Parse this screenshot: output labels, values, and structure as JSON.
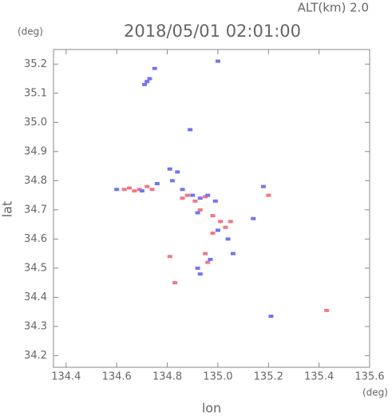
{
  "chart_data": {
    "type": "scatter",
    "title": "2018/05/01 02:01:00",
    "subtitle": "ALT(km)  2.0",
    "y_unit": "(deg)",
    "x_unit": "(deg)",
    "y_label": "lat",
    "x_label": "lon",
    "xlim": [
      134.35,
      135.6
    ],
    "ylim": [
      34.16,
      35.25
    ],
    "xticks": [
      134.4,
      134.6,
      134.8,
      {
        "value": 135.0,
        "label": "135.0"
      },
      135.2,
      135.4,
      135.6
    ],
    "yticks": [
      34.2,
      34.3,
      34.4,
      34.5,
      34.6,
      34.7,
      34.8,
      34.9,
      {
        "value": 35.0,
        "label": "35.0"
      },
      35.1,
      35.2
    ],
    "series": [
      {
        "color": "#f07888",
        "x": [
          134.63,
          134.65,
          134.67,
          134.69,
          134.72,
          134.74,
          134.88,
          134.91,
          134.95,
          134.98,
          135.01,
          135.03,
          135.05,
          134.98,
          134.95,
          134.96,
          134.81,
          134.83,
          135.43,
          135.2,
          134.86,
          134.93
        ],
        "values": [
          34.77,
          34.775,
          34.765,
          34.77,
          34.78,
          34.77,
          34.75,
          34.73,
          34.745,
          34.68,
          34.66,
          34.64,
          34.66,
          34.62,
          34.55,
          34.52,
          34.54,
          34.45,
          34.355,
          34.75,
          34.74,
          34.7
        ]
      },
      {
        "color": "#7474f0",
        "x": [
          134.72,
          134.71,
          134.73,
          134.75,
          135.0,
          134.89,
          134.6,
          134.7,
          134.76,
          134.81,
          134.84,
          134.82,
          134.86,
          134.9,
          134.93,
          134.96,
          134.99,
          134.92,
          135.0,
          135.04,
          134.92,
          134.93,
          134.97,
          135.14,
          135.21,
          135.06,
          135.18
        ],
        "values": [
          35.14,
          35.13,
          35.15,
          35.185,
          35.21,
          34.975,
          34.77,
          34.765,
          34.79,
          34.84,
          34.83,
          34.8,
          34.77,
          34.75,
          34.74,
          34.75,
          34.73,
          34.69,
          34.63,
          34.6,
          34.5,
          34.48,
          34.53,
          34.67,
          34.335,
          34.55,
          34.78
        ]
      }
    ]
  }
}
